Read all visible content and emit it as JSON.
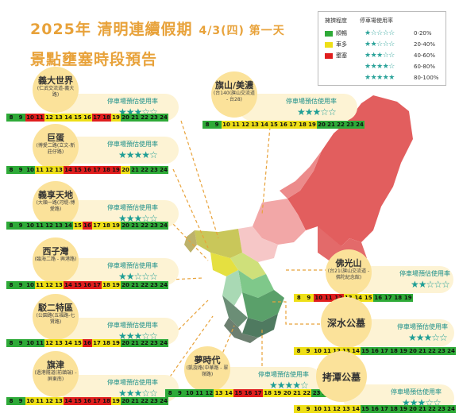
{
  "title": {
    "line1": "2025年 清明連續假期",
    "date": "4/3(四) 第一天",
    "line2": "景點壅塞時段預告"
  },
  "legend": {
    "col_a": "擁擠程度",
    "col_b": "停車場使用率",
    "levels": [
      {
        "label": "順暢",
        "color": "#2eaa38"
      },
      {
        "label": "車多",
        "color": "#eedf17"
      },
      {
        "label": "壅塞",
        "color": "#e01e1e"
      }
    ],
    "usage": [
      {
        "stars": "★☆☆☆☆",
        "range": "0-20%"
      },
      {
        "stars": "★★☆☆☆",
        "range": "20-40%"
      },
      {
        "stars": "★★★☆☆",
        "range": "40-60%"
      },
      {
        "stars": "★★★★☆",
        "range": "60-80%"
      },
      {
        "stars": "★★★★★",
        "range": "80-100%"
      }
    ]
  },
  "parking_label": "停車場預估使用率",
  "colors": {
    "green": "#2eaa38",
    "yellow": "#eedf17",
    "red": "#e01e1e",
    "accent": "#e8a23a"
  },
  "spots": [
    {
      "id": "yida",
      "name": "義大世界",
      "road": "(仁武交流道-義大路)",
      "stars": "★★★☆☆",
      "hours": [
        "8",
        "9",
        "10",
        "11",
        "12",
        "13",
        "14",
        "15",
        "16",
        "17",
        "18",
        "19",
        "20",
        "21",
        "22",
        "23",
        "24"
      ],
      "levels": [
        "g",
        "g",
        "r",
        "r",
        "y",
        "y",
        "y",
        "y",
        "y",
        "r",
        "r",
        "y",
        "g",
        "g",
        "g",
        "g",
        "g"
      ]
    },
    {
      "id": "judan",
      "name": "巨蛋",
      "road": "(博愛二路(立文-新莊仔路)",
      "stars": "★★★★☆",
      "hours": [
        "8",
        "9",
        "10",
        "11",
        "12",
        "13",
        "14",
        "15",
        "16",
        "17",
        "18",
        "19",
        "20",
        "21",
        "22",
        "23",
        "24"
      ],
      "levels": [
        "g",
        "g",
        "g",
        "y",
        "y",
        "y",
        "r",
        "r",
        "r",
        "r",
        "r",
        "r",
        "y",
        "g",
        "g",
        "g",
        "g"
      ]
    },
    {
      "id": "yixiang",
      "name": "義享天地",
      "road": "(大順一路(河堤-博愛路)",
      "stars": "★★★☆☆",
      "hours": [
        "8",
        "9",
        "10",
        "11",
        "12",
        "13",
        "14",
        "15",
        "16",
        "17",
        "18",
        "19",
        "20",
        "21",
        "22",
        "23",
        "24"
      ],
      "levels": [
        "g",
        "g",
        "g",
        "g",
        "g",
        "g",
        "g",
        "y",
        "r",
        "y",
        "y",
        "y",
        "g",
        "g",
        "g",
        "g",
        "g"
      ]
    },
    {
      "id": "xiziwan",
      "name": "西子灣",
      "road": "(臨海二路 - 興港路)",
      "stars": "★★☆☆☆",
      "hours": [
        "8",
        "9",
        "10",
        "11",
        "12",
        "13",
        "14",
        "15",
        "16",
        "17",
        "18",
        "19",
        "20",
        "21",
        "22",
        "23",
        "24"
      ],
      "levels": [
        "g",
        "g",
        "g",
        "y",
        "y",
        "y",
        "r",
        "r",
        "r",
        "r",
        "y",
        "y",
        "g",
        "g",
        "g",
        "g",
        "g"
      ]
    },
    {
      "id": "boer",
      "name": "駁二特區",
      "road": "(公園路(五福路-七賢路)",
      "stars": "★★★☆☆",
      "hours": [
        "8",
        "9",
        "10",
        "11",
        "12",
        "13",
        "14",
        "15",
        "16",
        "17",
        "18",
        "19",
        "20",
        "21",
        "22",
        "23",
        "24"
      ],
      "levels": [
        "g",
        "g",
        "g",
        "g",
        "y",
        "y",
        "y",
        "y",
        "r",
        "y",
        "y",
        "y",
        "g",
        "g",
        "g",
        "g",
        "g"
      ]
    },
    {
      "id": "qijin",
      "name": "旗津",
      "road": "(過港隧道(前鎮端) - 屏東南)",
      "stars": "★★★☆☆",
      "hours": [
        "8",
        "9",
        "10",
        "11",
        "12",
        "13",
        "14",
        "15",
        "16",
        "17",
        "18",
        "19",
        "20",
        "21",
        "22",
        "23",
        "24"
      ],
      "levels": [
        "g",
        "g",
        "y",
        "y",
        "y",
        "y",
        "r",
        "r",
        "r",
        "r",
        "r",
        "y",
        "g",
        "g",
        "g",
        "g",
        "g"
      ]
    },
    {
      "id": "menshidai",
      "name": "夢時代",
      "road": "(凱旋路(中華路 - 翠嶺路)",
      "stars": "★★★★☆",
      "hours": [
        "8",
        "9",
        "10",
        "11",
        "12",
        "13",
        "14",
        "15",
        "16",
        "17",
        "18",
        "19",
        "20",
        "21",
        "22",
        "23",
        "24"
      ],
      "levels": [
        "g",
        "g",
        "g",
        "g",
        "g",
        "y",
        "y",
        "r",
        "r",
        "r",
        "y",
        "y",
        "y",
        "y",
        "y",
        "g",
        "g"
      ]
    },
    {
      "id": "qishan",
      "name": "旗山/美濃",
      "road": "(台140(旗山交流道 - 台28)",
      "stars": "★★★☆☆",
      "hours": [
        "8",
        "9",
        "10",
        "11",
        "12",
        "13",
        "14",
        "15",
        "16",
        "17",
        "18",
        "19",
        "20",
        "21",
        "22",
        "23",
        "24"
      ],
      "levels": [
        "g",
        "g",
        "y",
        "y",
        "y",
        "y",
        "y",
        "y",
        "y",
        "y",
        "y",
        "y",
        "g",
        "g",
        "g",
        "g",
        "g"
      ]
    },
    {
      "id": "foguang",
      "name": "佛光山",
      "road": "(台21(旗山交流道 - 佛陀紀念館)",
      "stars": "★★☆☆☆",
      "hours": [
        "8",
        "9",
        "10",
        "11",
        "12",
        "13",
        "14",
        "15",
        "16",
        "17",
        "18",
        "19"
      ],
      "levels": [
        "y",
        "y",
        "r",
        "r",
        "r",
        "y",
        "y",
        "y",
        "g",
        "g",
        "g",
        "g"
      ]
    },
    {
      "id": "shenshui",
      "name": "深水公墓",
      "road": "",
      "stars": "★★★☆☆",
      "hours": [
        "8",
        "9",
        "10",
        "11",
        "12",
        "13",
        "14",
        "15",
        "16",
        "17",
        "18",
        "19",
        "20",
        "21",
        "22",
        "23",
        "24"
      ],
      "levels": [
        "y",
        "y",
        "y",
        "y",
        "y",
        "y",
        "y",
        "g",
        "g",
        "g",
        "g",
        "g",
        "g",
        "g",
        "g",
        "g",
        "g"
      ]
    },
    {
      "id": "kaotan",
      "name": "拷潭公墓",
      "road": "",
      "stars": "★★★☆☆",
      "hours": [
        "8",
        "9",
        "10",
        "11",
        "12",
        "13",
        "14",
        "15",
        "16",
        "17",
        "18",
        "19",
        "20",
        "21",
        "22",
        "23",
        "24"
      ],
      "levels": [
        "y",
        "y",
        "y",
        "y",
        "y",
        "y",
        "y",
        "g",
        "g",
        "g",
        "g",
        "g",
        "g",
        "g",
        "g",
        "g",
        "g"
      ]
    }
  ]
}
